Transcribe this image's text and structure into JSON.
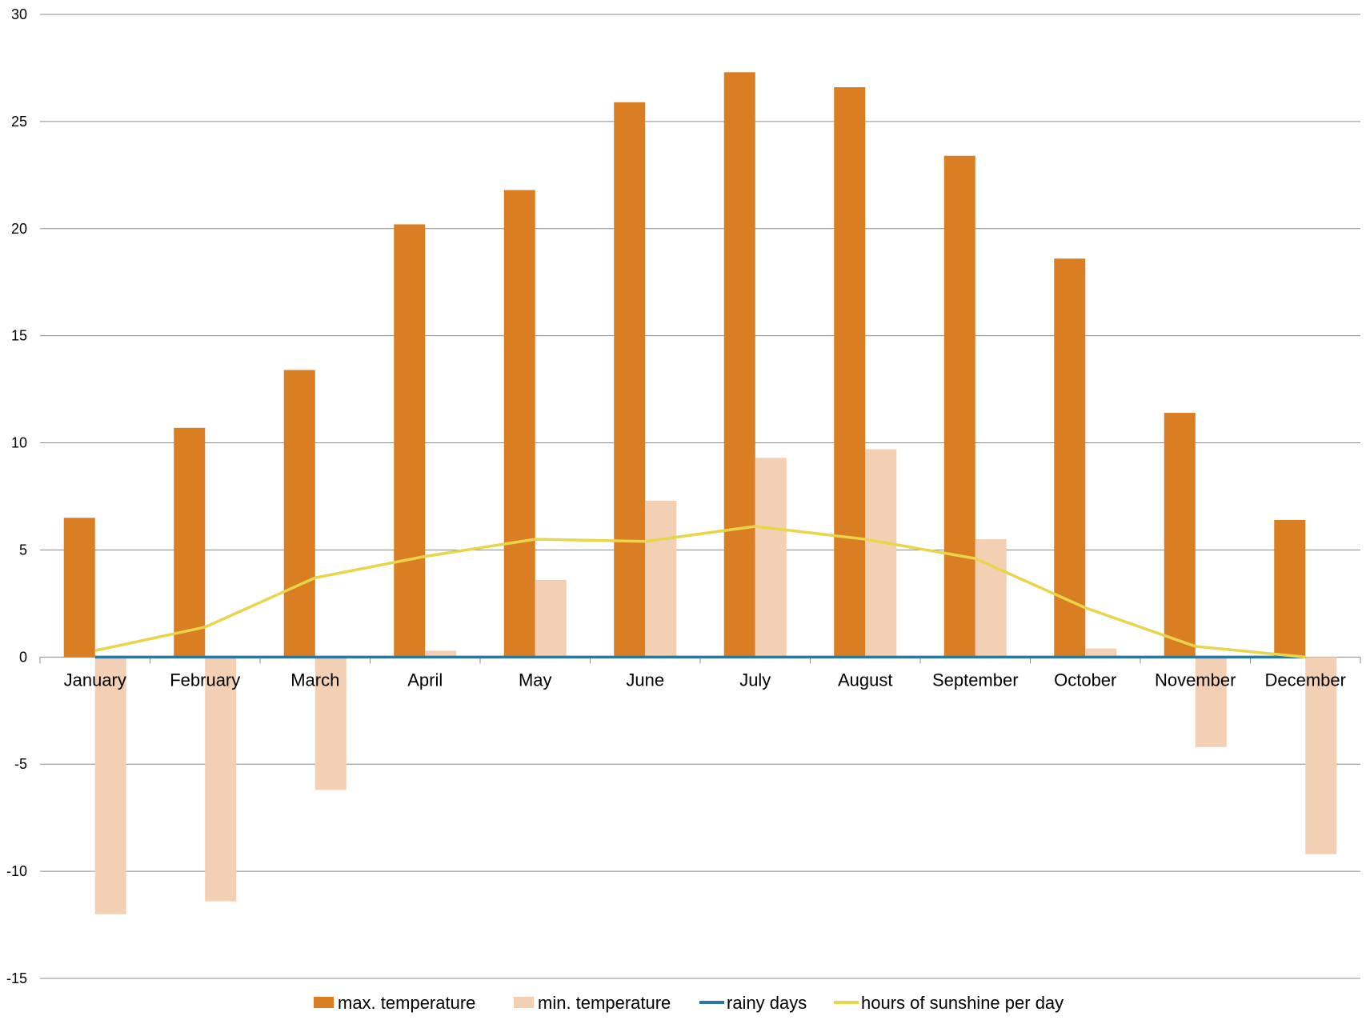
{
  "chart_data": {
    "type": "bar",
    "categories": [
      "January",
      "February",
      "March",
      "April",
      "May",
      "June",
      "July",
      "August",
      "September",
      "October",
      "November",
      "December"
    ],
    "ylim": [
      -15,
      30
    ],
    "yticks": [
      -15,
      -10,
      -5,
      0,
      5,
      10,
      15,
      20,
      25,
      30
    ],
    "ytick_labels": [
      "-15",
      "-10",
      "-5",
      "0",
      "5",
      "10",
      "15",
      "20",
      "25",
      "30"
    ],
    "grid": true,
    "legend_position": "bottom",
    "series": [
      {
        "name": "max.  temperature",
        "kind": "bar",
        "color": "#D97E22",
        "values": [
          6.5,
          10.7,
          13.4,
          20.2,
          21.8,
          25.9,
          27.3,
          26.6,
          23.4,
          18.6,
          11.4,
          6.4
        ]
      },
      {
        "name": "min. temperature",
        "kind": "bar",
        "color": "#F3CFB3",
        "values": [
          -12.0,
          -11.4,
          -6.2,
          0.3,
          3.6,
          7.3,
          9.3,
          9.7,
          5.5,
          0.4,
          -4.2,
          -9.2
        ]
      },
      {
        "name": "rainy days",
        "kind": "line",
        "color": "#2E75A0",
        "values": [
          0,
          0,
          0,
          0,
          0,
          0,
          0,
          0,
          0,
          0,
          0,
          0
        ]
      },
      {
        "name": "hours of sunshine per day",
        "kind": "line",
        "color": "#E8D54A",
        "values": [
          0.3,
          1.4,
          3.7,
          4.7,
          5.5,
          5.4,
          6.1,
          5.5,
          4.6,
          2.3,
          0.5,
          0.0
        ]
      }
    ]
  }
}
